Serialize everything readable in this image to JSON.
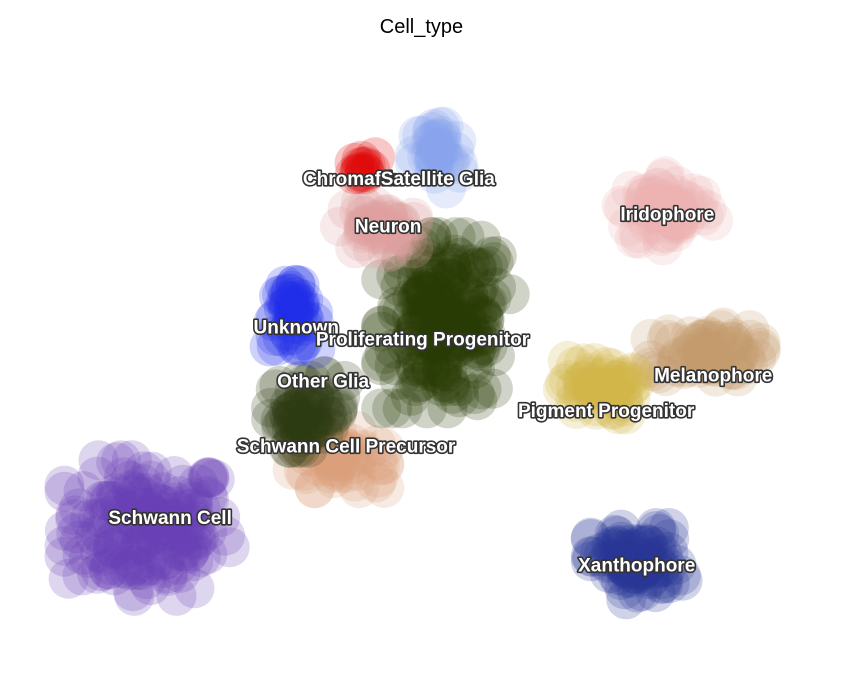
{
  "chart_data": {
    "type": "scatter",
    "title": "Cell_type",
    "xlabel": "",
    "ylabel": "",
    "grid": false,
    "legend": "on data",
    "x_range": [
      0,
      100
    ],
    "y_range": [
      0,
      100
    ],
    "clusters": [
      {
        "label": "Schwann Cell",
        "color": "#6a3fb5",
        "center": [
          14,
          20.5
        ],
        "spread": [
          9,
          9.5
        ],
        "count": 170
      },
      {
        "label": "Schwann Cell Precursor",
        "color": "#d9a07a",
        "center": [
          39,
          32
        ],
        "spread": [
          5,
          4
        ],
        "count": 60
      },
      {
        "label": "Other Glia",
        "color": "#2c3a10",
        "center": [
          35,
          40
        ],
        "spread": [
          4,
          5
        ],
        "count": 60
      },
      {
        "label": "Unknown",
        "color": "#1f2ee8",
        "center": [
          33,
          56
        ],
        "spread": [
          2.5,
          4.5
        ],
        "count": 45
      },
      {
        "label": "Proliferating Progenitor",
        "color": "#283b06",
        "center": [
          53,
          55
        ],
        "spread": [
          7,
          12
        ],
        "count": 190
      },
      {
        "label": "Neuron",
        "color": "#dea0a0",
        "center": [
          44,
          71
        ],
        "spread": [
          4,
          3.5
        ],
        "count": 45
      },
      {
        "label": "Chromaffin",
        "color": "#e00000",
        "center": [
          42,
          81
        ],
        "spread": [
          1.5,
          1.5
        ],
        "count": 12
      },
      {
        "label": "Satellite Glia",
        "color": "#8aa2ee",
        "center": [
          52,
          83
        ],
        "spread": [
          2.5,
          5
        ],
        "count": 35
      },
      {
        "label": "Iridophore",
        "color": "#ebb0b0",
        "center": [
          82,
          74
        ],
        "spread": [
          5,
          5
        ],
        "count": 70
      },
      {
        "label": "Melanophore",
        "color": "#c69a6c",
        "center": [
          87,
          50
        ],
        "spread": [
          6,
          3.5
        ],
        "count": 75
      },
      {
        "label": "Pigment Progenitor",
        "color": "#d3b54a",
        "center": [
          73,
          44
        ],
        "spread": [
          4,
          4
        ],
        "count": 55
      },
      {
        "label": "Xanthophore",
        "color": "#283896",
        "center": [
          78,
          14.5
        ],
        "spread": [
          5,
          5
        ],
        "count": 90
      }
    ],
    "label_positions": [
      {
        "label": "Schwann Cell",
        "x": 17,
        "y": 22
      },
      {
        "label": "Schwann Cell Precursor",
        "x": 40,
        "y": 34
      },
      {
        "label": "Other Glia",
        "x": 37,
        "y": 45
      },
      {
        "label": "Unknown",
        "x": 33.5,
        "y": 54
      },
      {
        "label": "Proliferating Progenitor",
        "x": 50,
        "y": 52
      },
      {
        "label": "Neuron",
        "x": 45.5,
        "y": 71
      },
      {
        "label": "Chromaffin",
        "x": 41,
        "y": 79
      },
      {
        "label": "Satellite Glia",
        "x": 52,
        "y": 79
      },
      {
        "label": "Iridophore",
        "x": 82,
        "y": 73
      },
      {
        "label": "Melanophore",
        "x": 88,
        "y": 46
      },
      {
        "label": "Pigment Progenitor",
        "x": 74,
        "y": 40
      },
      {
        "label": "Xanthophore",
        "x": 78,
        "y": 14
      }
    ]
  }
}
